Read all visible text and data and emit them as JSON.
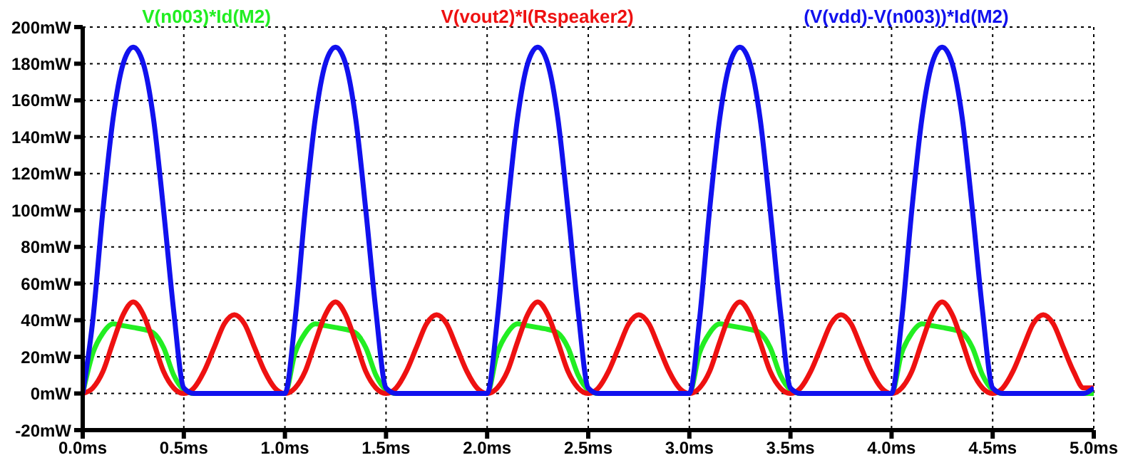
{
  "chart_data": {
    "type": "line",
    "x": [
      0,
      0.05,
      0.1,
      0.15,
      0.2,
      0.25,
      0.3,
      0.35,
      0.4,
      0.45,
      0.5,
      0.55,
      0.6,
      0.65,
      0.7,
      0.75,
      0.8,
      0.85,
      0.9,
      0.95,
      1,
      1.05,
      1.1,
      1.15,
      1.2,
      1.25,
      1.3,
      1.35,
      1.4,
      1.45,
      1.5,
      1.55,
      1.6,
      1.65,
      1.7,
      1.75,
      1.8,
      1.85,
      1.9,
      1.95,
      2,
      2.05,
      2.1,
      2.15,
      2.2,
      2.25,
      2.3,
      2.35,
      2.4,
      2.45,
      2.5,
      2.55,
      2.6,
      2.65,
      2.7,
      2.75,
      2.8,
      2.85,
      2.9,
      2.95,
      3,
      3.05,
      3.1,
      3.15,
      3.2,
      3.25,
      3.3,
      3.35,
      3.4,
      3.45,
      3.5,
      3.55,
      3.6,
      3.65,
      3.7,
      3.75,
      3.8,
      3.85,
      3.9,
      3.95,
      4,
      4.05,
      4.1,
      4.15,
      4.2,
      4.25,
      4.3,
      4.35,
      4.4,
      4.45,
      4.5,
      4.55,
      4.6,
      4.65,
      4.7,
      4.75,
      4.8,
      4.85,
      4.9,
      4.95,
      5
    ],
    "series": [
      {
        "name": "V(n003)*Id(M2)",
        "color": "#22ee22",
        "values": [
          0,
          22,
          33,
          38,
          37,
          36,
          35,
          33,
          25,
          10,
          2,
          0,
          0,
          0,
          0,
          0,
          0,
          0,
          0,
          0,
          0,
          22,
          33,
          38,
          37,
          36,
          35,
          33,
          25,
          10,
          2,
          0,
          0,
          0,
          0,
          0,
          0,
          0,
          0,
          0,
          0,
          22,
          33,
          38,
          37,
          36,
          35,
          33,
          25,
          10,
          2,
          0,
          0,
          0,
          0,
          0,
          0,
          0,
          0,
          0,
          0,
          22,
          33,
          38,
          37,
          36,
          35,
          33,
          25,
          10,
          2,
          0,
          0,
          0,
          0,
          0,
          0,
          0,
          0,
          0,
          0,
          22,
          33,
          38,
          37,
          36,
          35,
          33,
          25,
          10,
          2,
          0,
          0,
          0,
          0,
          0,
          0,
          0,
          0,
          0,
          0
        ]
      },
      {
        "name": "V(vout2)*I(Rspeaker2)",
        "color": "#ee1111",
        "values": [
          0,
          3,
          12,
          28,
          43,
          50,
          43,
          28,
          12,
          3,
          0,
          3,
          12,
          25,
          38,
          43,
          38,
          25,
          12,
          3,
          0,
          3,
          12,
          28,
          43,
          50,
          43,
          28,
          12,
          3,
          0,
          3,
          12,
          25,
          38,
          43,
          38,
          25,
          12,
          3,
          0,
          3,
          12,
          28,
          43,
          50,
          43,
          28,
          12,
          3,
          0,
          3,
          12,
          25,
          38,
          43,
          38,
          25,
          12,
          3,
          0,
          3,
          12,
          28,
          43,
          50,
          43,
          28,
          12,
          3,
          0,
          3,
          12,
          25,
          38,
          43,
          38,
          25,
          12,
          3,
          0,
          3,
          12,
          28,
          43,
          50,
          43,
          28,
          12,
          3,
          0,
          3,
          12,
          25,
          38,
          43,
          38,
          25,
          12,
          3,
          3
        ]
      },
      {
        "name": "(V(vdd)-V(n003))*Id(M2)",
        "color": "#1111ee",
        "values": [
          0,
          40,
          100,
          150,
          180,
          189,
          180,
          150,
          100,
          45,
          3,
          0,
          0,
          0,
          0,
          0,
          0,
          0,
          0,
          0,
          0,
          40,
          100,
          150,
          180,
          189,
          180,
          150,
          100,
          45,
          3,
          0,
          0,
          0,
          0,
          0,
          0,
          0,
          0,
          0,
          0,
          40,
          100,
          150,
          180,
          189,
          180,
          150,
          100,
          45,
          3,
          0,
          0,
          0,
          0,
          0,
          0,
          0,
          0,
          0,
          0,
          40,
          100,
          150,
          180,
          189,
          180,
          150,
          100,
          45,
          3,
          0,
          0,
          0,
          0,
          0,
          0,
          0,
          0,
          0,
          0,
          40,
          100,
          150,
          180,
          189,
          180,
          150,
          100,
          45,
          3,
          0,
          0,
          0,
          0,
          0,
          0,
          0,
          0,
          0,
          3
        ]
      }
    ],
    "xlim": [
      0,
      5
    ],
    "xticks": [
      {
        "value": 0,
        "label": "0.0ms"
      },
      {
        "value": 0.5,
        "label": "0.5ms"
      },
      {
        "value": 1,
        "label": "1.0ms"
      },
      {
        "value": 1.5,
        "label": "1.5ms"
      },
      {
        "value": 2,
        "label": "2.0ms"
      },
      {
        "value": 2.5,
        "label": "2.5ms"
      },
      {
        "value": 3,
        "label": "3.0ms"
      },
      {
        "value": 3.5,
        "label": "3.5ms"
      },
      {
        "value": 4,
        "label": "4.0ms"
      },
      {
        "value": 4.5,
        "label": "4.5ms"
      },
      {
        "value": 5,
        "label": "5.0ms"
      }
    ],
    "ylim": [
      -20,
      200
    ],
    "yticks": [
      {
        "value": -20,
        "label": "-20mW"
      },
      {
        "value": 0,
        "label": "0mW"
      },
      {
        "value": 20,
        "label": "20mW"
      },
      {
        "value": 40,
        "label": "40mW"
      },
      {
        "value": 60,
        "label": "60mW"
      },
      {
        "value": 80,
        "label": "80mW"
      },
      {
        "value": 100,
        "label": "100mW"
      },
      {
        "value": 120,
        "label": "120mW"
      },
      {
        "value": 140,
        "label": "140mW"
      },
      {
        "value": 160,
        "label": "160mW"
      },
      {
        "value": 180,
        "label": "180mW"
      },
      {
        "value": 200,
        "label": "200mW"
      }
    ],
    "grid": true,
    "legend": "top",
    "marker": "none",
    "line_style": "solid"
  }
}
